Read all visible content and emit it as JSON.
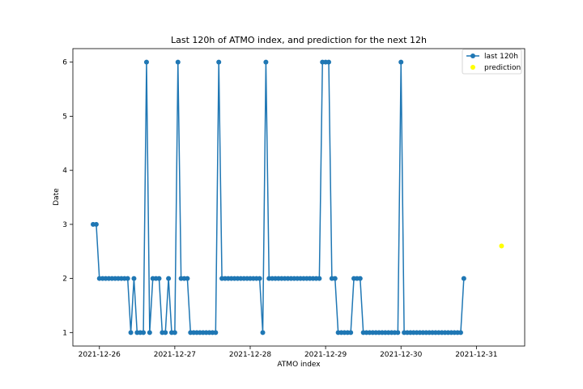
{
  "chart_data": {
    "type": "line",
    "title": "Last 120h of ATMO index, and prediction for the next 12h",
    "xlabel": "ATMO index",
    "ylabel": "Date",
    "x_ticks": [
      "2021-12-26",
      "2021-12-27",
      "2021-12-28",
      "2021-12-29",
      "2021-12-30",
      "2021-12-31"
    ],
    "y_ticks": [
      "1",
      "2",
      "3",
      "4",
      "5",
      "6"
    ],
    "ylim": [
      0.75,
      6.25
    ],
    "series": [
      {
        "name": "last 120h",
        "color": "#1f77b4",
        "marker": "circle",
        "values": [
          3,
          3,
          2,
          2,
          2,
          2,
          2,
          2,
          2,
          2,
          2,
          2,
          1,
          2,
          1,
          1,
          1,
          6,
          1,
          2,
          2,
          2,
          1,
          1,
          2,
          1,
          1,
          6,
          2,
          2,
          2,
          1,
          1,
          1,
          1,
          1,
          1,
          1,
          1,
          1,
          6,
          2,
          2,
          2,
          2,
          2,
          2,
          2,
          2,
          2,
          2,
          2,
          2,
          2,
          1,
          6,
          2,
          2,
          2,
          2,
          2,
          2,
          2,
          2,
          2,
          2,
          2,
          2,
          2,
          2,
          2,
          2,
          2,
          6,
          6,
          6,
          2,
          2,
          1,
          1,
          1,
          1,
          1,
          2,
          2,
          2,
          1,
          1,
          1,
          1,
          1,
          1,
          1,
          1,
          1,
          1,
          1,
          1,
          6,
          1,
          1,
          1,
          1,
          1,
          1,
          1,
          1,
          1,
          1,
          1,
          1,
          1,
          1,
          1,
          1,
          1,
          1,
          1,
          2
        ]
      },
      {
        "name": "prediction",
        "color": "#ffff00",
        "marker": "circle",
        "values": [
          2.6
        ]
      }
    ],
    "legend": [
      "last 120h",
      "prediction"
    ],
    "legend_position": "top-right"
  }
}
